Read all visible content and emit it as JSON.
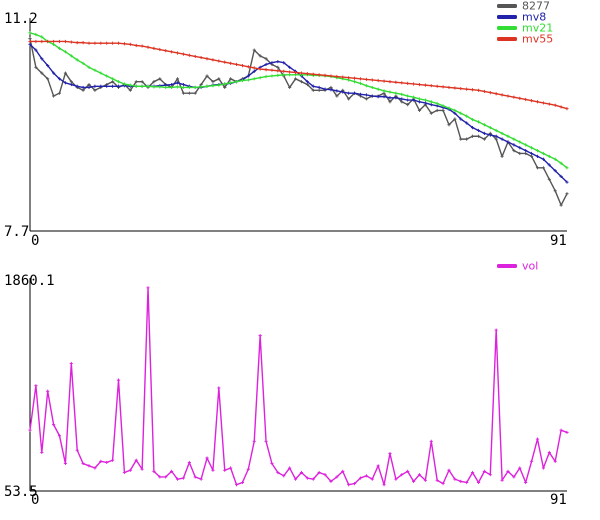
{
  "chart_data": [
    {
      "type": "line",
      "title": "",
      "xlabel": "",
      "ylabel": "",
      "xlim": [
        0,
        91
      ],
      "ylim": [
        7.7,
        11.2
      ],
      "x_tick_labels": [
        "0",
        "91"
      ],
      "y_tick_labels": [
        "11.2",
        "7.7"
      ],
      "grid": false,
      "legend_placement": "top-right",
      "series": [
        {
          "name": "8277",
          "color": "#555555",
          "values": [
            11.05,
            10.55,
            10.45,
            10.35,
            10.05,
            10.1,
            10.45,
            10.3,
            10.2,
            10.15,
            10.25,
            10.15,
            10.2,
            10.25,
            10.3,
            10.2,
            10.25,
            10.15,
            10.3,
            10.3,
            10.2,
            10.3,
            10.35,
            10.25,
            10.2,
            10.35,
            10.1,
            10.1,
            10.1,
            10.25,
            10.4,
            10.3,
            10.35,
            10.2,
            10.35,
            10.3,
            10.35,
            10.4,
            10.85,
            10.75,
            10.7,
            10.6,
            10.55,
            10.4,
            10.2,
            10.35,
            10.3,
            10.25,
            10.15,
            10.15,
            10.15,
            10.2,
            10.05,
            10.15,
            10.0,
            10.1,
            10.05,
            10.0,
            10.05,
            10.05,
            10.1,
            9.95,
            10.05,
            9.95,
            9.9,
            10.0,
            9.8,
            9.9,
            9.75,
            9.8,
            9.8,
            9.55,
            9.65,
            9.3,
            9.3,
            9.35,
            9.35,
            9.3,
            9.4,
            9.3,
            9.0,
            9.25,
            9.1,
            9.05,
            9.05,
            9.0,
            8.8,
            8.8,
            8.6,
            8.4,
            8.15,
            8.35
          ]
        },
        {
          "name": "mv8",
          "color": "#2222aa",
          "values": [
            10.95,
            10.85,
            10.7,
            10.58,
            10.45,
            10.35,
            10.28,
            10.25,
            10.22,
            10.2,
            10.2,
            10.22,
            10.22,
            10.22,
            10.22,
            10.22,
            10.23,
            10.22,
            10.22,
            10.22,
            10.22,
            10.22,
            10.23,
            10.24,
            10.25,
            10.28,
            10.25,
            10.22,
            10.2,
            10.2,
            10.22,
            10.24,
            10.25,
            10.26,
            10.27,
            10.3,
            10.33,
            10.4,
            10.48,
            10.55,
            10.6,
            10.63,
            10.65,
            10.63,
            10.55,
            10.48,
            10.4,
            10.3,
            10.22,
            10.2,
            10.17,
            10.16,
            10.14,
            10.12,
            10.1,
            10.1,
            10.08,
            10.07,
            10.05,
            10.04,
            10.04,
            10.02,
            10.02,
            10.0,
            9.98,
            9.98,
            9.95,
            9.93,
            9.9,
            9.88,
            9.85,
            9.82,
            9.75,
            9.65,
            9.58,
            9.5,
            9.45,
            9.4,
            9.37,
            9.35,
            9.3,
            9.25,
            9.2,
            9.15,
            9.1,
            9.05,
            9.0,
            8.95,
            8.85,
            8.75,
            8.65,
            8.55
          ]
        },
        {
          "name": "mv21",
          "color": "#33dd33",
          "values": [
            11.15,
            11.12,
            11.08,
            11.0,
            10.95,
            10.88,
            10.82,
            10.75,
            10.68,
            10.62,
            10.55,
            10.5,
            10.45,
            10.4,
            10.35,
            10.3,
            10.26,
            10.24,
            10.22,
            10.22,
            10.22,
            10.21,
            10.21,
            10.2,
            10.2,
            10.21,
            10.2,
            10.2,
            10.2,
            10.21,
            10.22,
            10.23,
            10.24,
            10.26,
            10.28,
            10.3,
            10.32,
            10.33,
            10.35,
            10.37,
            10.39,
            10.4,
            10.41,
            10.42,
            10.42,
            10.42,
            10.42,
            10.42,
            10.41,
            10.41,
            10.4,
            10.39,
            10.37,
            10.35,
            10.33,
            10.3,
            10.27,
            10.23,
            10.2,
            10.17,
            10.14,
            10.12,
            10.1,
            10.08,
            10.05,
            10.03,
            10.0,
            9.98,
            9.95,
            9.92,
            9.88,
            9.84,
            9.8,
            9.75,
            9.7,
            9.64,
            9.6,
            9.55,
            9.5,
            9.45,
            9.4,
            9.35,
            9.3,
            9.25,
            9.2,
            9.15,
            9.1,
            9.05,
            9.0,
            8.95,
            8.88,
            8.8
          ]
        },
        {
          "name": "mv55",
          "color": "#dd3322",
          "values": [
            11.0,
            11.0,
            11.0,
            11.0,
            11.0,
            11.0,
            11.0,
            10.99,
            10.98,
            10.98,
            10.97,
            10.97,
            10.97,
            10.97,
            10.97,
            10.97,
            10.96,
            10.95,
            10.93,
            10.92,
            10.9,
            10.88,
            10.86,
            10.84,
            10.82,
            10.8,
            10.78,
            10.76,
            10.74,
            10.72,
            10.7,
            10.68,
            10.66,
            10.64,
            10.62,
            10.6,
            10.58,
            10.56,
            10.54,
            10.52,
            10.51,
            10.5,
            10.49,
            10.48,
            10.47,
            10.46,
            10.45,
            10.44,
            10.43,
            10.42,
            10.41,
            10.4,
            10.39,
            10.38,
            10.37,
            10.36,
            10.35,
            10.34,
            10.33,
            10.32,
            10.31,
            10.3,
            10.29,
            10.28,
            10.27,
            10.26,
            10.25,
            10.24,
            10.23,
            10.22,
            10.21,
            10.2,
            10.19,
            10.18,
            10.17,
            10.16,
            10.15,
            10.13,
            10.11,
            10.09,
            10.07,
            10.05,
            10.03,
            10.01,
            9.99,
            9.97,
            9.95,
            9.93,
            9.91,
            9.89,
            9.86,
            9.83
          ]
        }
      ]
    },
    {
      "type": "line",
      "title": "",
      "xlabel": "",
      "ylabel": "",
      "xlim": [
        0,
        91
      ],
      "ylim": [
        53.5,
        1860.1
      ],
      "x_tick_labels": [
        "0",
        "91"
      ],
      "y_tick_labels": [
        "1860.1",
        "53.5"
      ],
      "grid": false,
      "legend_placement": "top-right",
      "series": [
        {
          "name": "vol",
          "color": "#dd22dd",
          "values": [
            600,
            1000,
            400,
            950,
            650,
            550,
            300,
            1200,
            420,
            300,
            280,
            260,
            320,
            310,
            330,
            1050,
            220,
            240,
            330,
            250,
            1880,
            230,
            180,
            180,
            230,
            160,
            170,
            310,
            180,
            160,
            350,
            240,
            980,
            240,
            260,
            110,
            130,
            250,
            500,
            1450,
            500,
            300,
            220,
            190,
            260,
            160,
            220,
            170,
            160,
            220,
            200,
            140,
            180,
            230,
            110,
            120,
            170,
            190,
            160,
            280,
            110,
            390,
            160,
            200,
            230,
            140,
            200,
            150,
            500,
            150,
            120,
            240,
            160,
            140,
            130,
            220,
            130,
            230,
            200,
            1500,
            150,
            230,
            180,
            260,
            130,
            320,
            520,
            260,
            400,
            320,
            600,
            580
          ]
        }
      ]
    }
  ]
}
